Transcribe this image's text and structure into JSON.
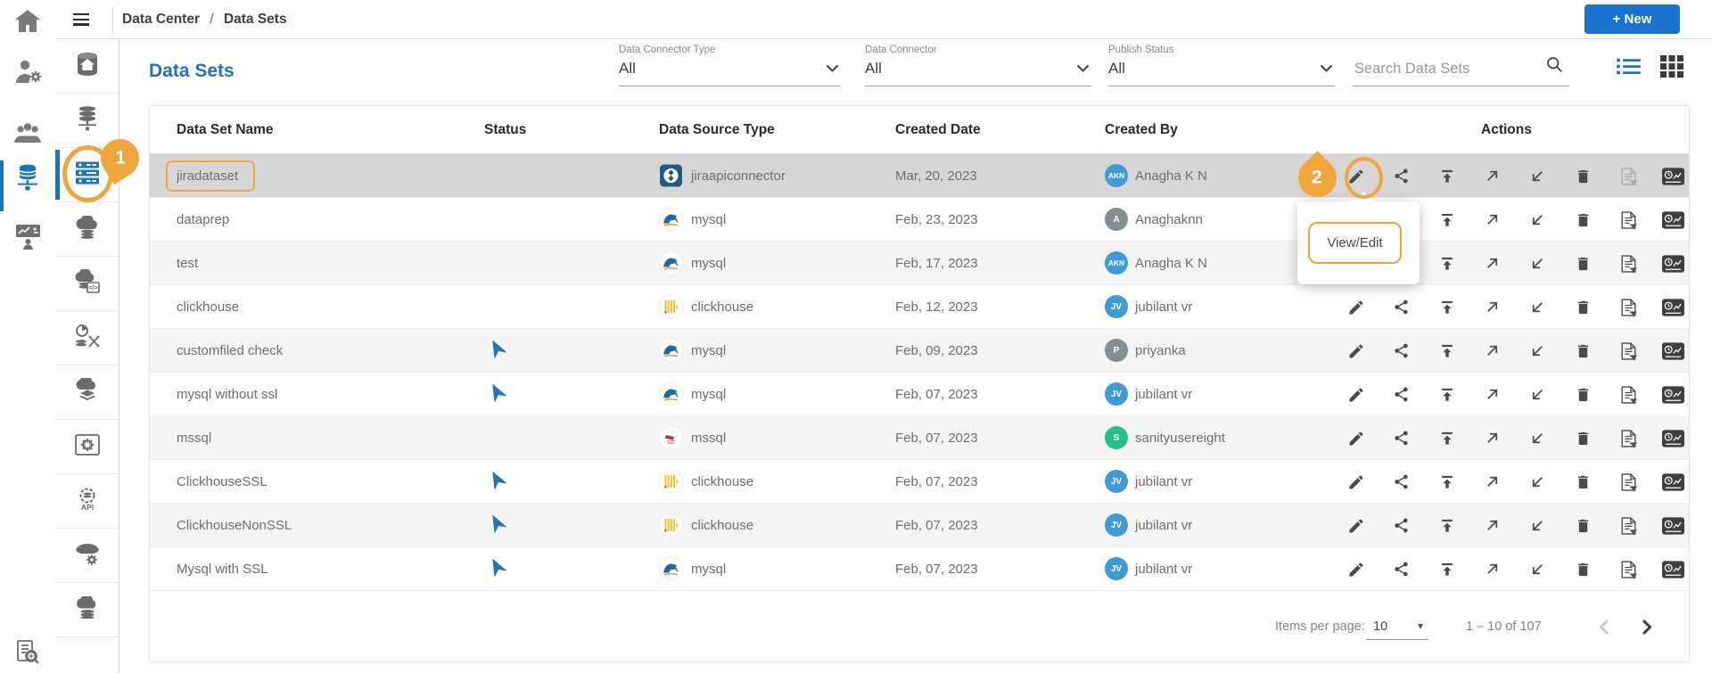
{
  "topbar": {
    "breadcrumb": [
      "Data Center",
      "Data Sets"
    ],
    "breadcrumb_separator": "/",
    "new_button_label": "+ New"
  },
  "outer_sidebar": {
    "items": [
      {
        "icon": "home-icon",
        "active": false
      },
      {
        "icon": "user-settings-icon",
        "active": false
      },
      {
        "icon": "users-icon",
        "active": false
      },
      {
        "icon": "database-network-icon",
        "active": true
      },
      {
        "icon": "training-board-icon",
        "active": false
      },
      {
        "icon": "document-search-icon",
        "active": false
      }
    ]
  },
  "inner_sidebar": {
    "items": [
      {
        "icon": "database-home-icon",
        "active": false
      },
      {
        "icon": "database-connection-icon",
        "active": false
      },
      {
        "icon": "data-sets-icon",
        "active": true
      },
      {
        "icon": "cloud-database-icon",
        "active": false
      },
      {
        "icon": "cloud-code-icon",
        "active": false
      },
      {
        "icon": "data-prep-icon",
        "active": false
      },
      {
        "icon": "cloud-layers-icon",
        "active": false
      },
      {
        "icon": "settings-database-icon",
        "active": false
      },
      {
        "icon": "api-settings-icon",
        "active": false
      },
      {
        "icon": "funnel-settings-icon",
        "active": false
      },
      {
        "icon": "cloud-storage-icon",
        "active": false
      }
    ]
  },
  "page": {
    "title": "Data Sets"
  },
  "filters": [
    {
      "label": "Data Connector Type",
      "value": "All"
    },
    {
      "label": "Data Connector",
      "value": "All"
    },
    {
      "label": "Publish Status",
      "value": "All"
    }
  ],
  "search": {
    "placeholder": "Search Data Sets"
  },
  "table": {
    "columns": [
      "Data Set Name",
      "Status",
      "Data Source Type",
      "Created Date",
      "Created By",
      "Actions"
    ],
    "action_icons": [
      "edit-icon",
      "share-icon",
      "publish-icon",
      "arrow-up-right-icon",
      "arrow-down-left-icon",
      "delete-icon",
      "document-filter-icon",
      "usage-chart-icon"
    ],
    "rows": [
      {
        "name": "jiradataset",
        "published": false,
        "source_type": "jiraapiconnector",
        "source_icon": "jira",
        "created_date": "Mar, 20, 2023",
        "created_by": "Anagha K N",
        "initials": "AKN",
        "avatar_color": "#3e9bd6",
        "selected": true,
        "doc_disabled": true
      },
      {
        "name": "dataprep",
        "published": false,
        "source_type": "mysql",
        "source_icon": "mysql",
        "created_date": "Feb, 23, 2023",
        "created_by": "Anaghaknn",
        "initials": "A",
        "avatar_color": "#878e92",
        "selected": false,
        "doc_disabled": false
      },
      {
        "name": "test",
        "published": false,
        "source_type": "mysql",
        "source_icon": "mysql",
        "created_date": "Feb, 17, 2023",
        "created_by": "Anagha K N",
        "initials": "AKN",
        "avatar_color": "#3e9bd6",
        "selected": false,
        "doc_disabled": false
      },
      {
        "name": "clickhouse",
        "published": false,
        "source_type": "clickhouse",
        "source_icon": "clickhouse",
        "created_date": "Feb, 12, 2023",
        "created_by": "jubilant vr",
        "initials": "JV",
        "avatar_color": "#3e9bd6",
        "selected": false,
        "doc_disabled": false
      },
      {
        "name": "customfiled check",
        "published": true,
        "source_type": "mysql",
        "source_icon": "mysql",
        "created_date": "Feb, 09, 2023",
        "created_by": "priyanka",
        "initials": "P",
        "avatar_color": "#878e92",
        "selected": false,
        "doc_disabled": false
      },
      {
        "name": "mysql without ssl",
        "published": true,
        "source_type": "mysql",
        "source_icon": "mysql",
        "created_date": "Feb, 07, 2023",
        "created_by": "jubilant vr",
        "initials": "JV",
        "avatar_color": "#3e9bd6",
        "selected": false,
        "doc_disabled": false
      },
      {
        "name": "mssql",
        "published": false,
        "source_type": "mssql",
        "source_icon": "mssql",
        "created_date": "Feb, 07, 2023",
        "created_by": "sanityusereight",
        "initials": "S",
        "avatar_color": "#25bf8b",
        "selected": false,
        "doc_disabled": false
      },
      {
        "name": "ClickhouseSSL",
        "published": true,
        "source_type": "clickhouse",
        "source_icon": "clickhouse",
        "created_date": "Feb, 07, 2023",
        "created_by": "jubilant vr",
        "initials": "JV",
        "avatar_color": "#3e9bd6",
        "selected": false,
        "doc_disabled": false
      },
      {
        "name": "ClickhouseNonSSL",
        "published": true,
        "source_type": "clickhouse",
        "source_icon": "clickhouse",
        "created_date": "Feb, 07, 2023",
        "created_by": "jubilant vr",
        "initials": "JV",
        "avatar_color": "#3e9bd6",
        "selected": false,
        "doc_disabled": false
      },
      {
        "name": "Mysql with SSL",
        "published": true,
        "source_type": "mysql",
        "source_icon": "mysql",
        "created_date": "Feb, 07, 2023",
        "created_by": "jubilant vr",
        "initials": "JV",
        "avatar_color": "#3e9bd6",
        "selected": false,
        "doc_disabled": false
      }
    ]
  },
  "pagination": {
    "items_per_page_label": "Items per page:",
    "items_per_page_value": "10",
    "range_label": "1 – 10 of 107"
  },
  "annotations": {
    "step_1_label": "1",
    "step_2_label": "2",
    "tooltip_label": "View/Edit"
  },
  "colors": {
    "accent_blue": "#1b75bb",
    "button_blue": "#1a73cf",
    "title_blue": "#2273b8",
    "annotation_orange": "#f0a63a",
    "status_plane_blue": "#2374b5",
    "selected_row_gray": "#d6d6d6",
    "avatar_blue": "#3e9bd6",
    "avatar_gray": "#878e92",
    "avatar_green": "#25bf8b"
  }
}
